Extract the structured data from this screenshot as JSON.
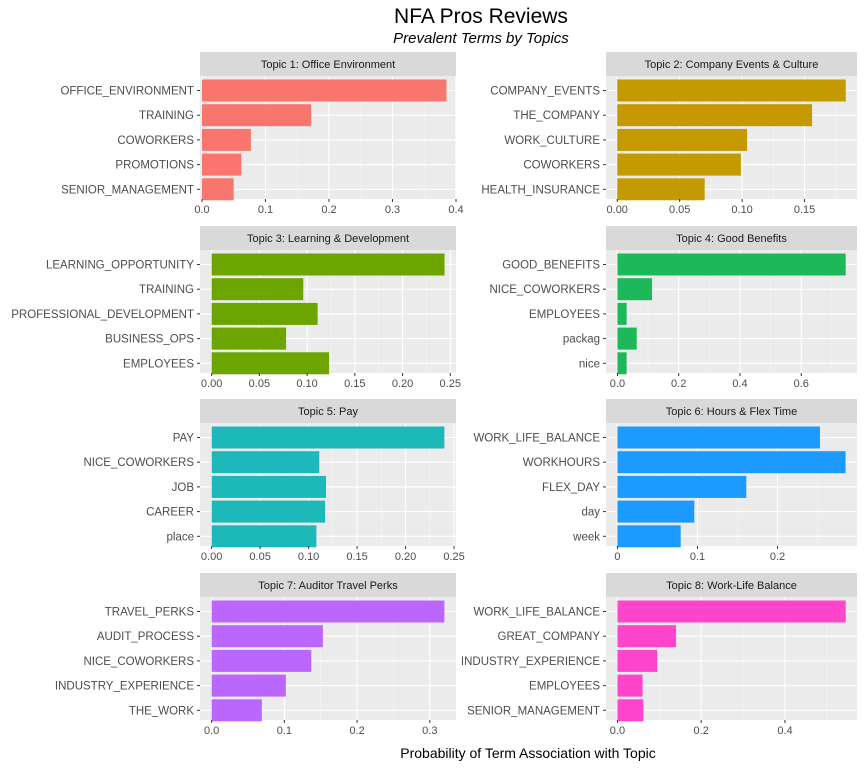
{
  "chart_data": {
    "type": "bar",
    "orientation": "horizontal",
    "title": "NFA Pros Reviews",
    "subtitle": "Prevalent Terms by Topics",
    "xlabel": "Probability of Term Association with Topic",
    "ylabel": "",
    "grid": true,
    "legend": "none",
    "panels": [
      {
        "title": "Topic 1: Office Environment",
        "color": "#F8766D",
        "categories": [
          "OFFICE_ENVIRONMENT",
          "TRAINING",
          "COWORKERS",
          "PROMOTIONS",
          "SENIOR_MANAGEMENT"
        ],
        "values": [
          0.385,
          0.172,
          0.077,
          0.062,
          0.05
        ],
        "xlim": [
          -0.0031,
          0.4
        ],
        "ticks": [
          0,
          0.1,
          0.2,
          0.3,
          0.4
        ],
        "tick_labels": [
          "0.0",
          "0.1",
          "0.2",
          "0.3",
          "0.4"
        ]
      },
      {
        "title": "Topic 2: Company Events & Culture",
        "color": "#C49A00",
        "categories": [
          "COMPANY_EVENTS",
          "THE_COMPANY",
          "WORK_CULTURE",
          "COWORKERS",
          "HEALTH_INSURANCE"
        ],
        "values": [
          0.183,
          0.156,
          0.104,
          0.099,
          0.07
        ],
        "xlim": [
          -0.009,
          0.192
        ],
        "ticks": [
          0,
          0.05,
          0.1,
          0.15
        ],
        "tick_labels": [
          "0.00",
          "0.05",
          "0.10",
          "0.15"
        ]
      },
      {
        "title": "Topic 3: Learning & Development",
        "color": "#6CA400",
        "categories": [
          "LEARNING_OPPORTUNITY",
          "TRAINING",
          "PROFESSIONAL_DEVELOPMENT",
          "BUSINESS_OPS",
          "EMPLOYEES"
        ],
        "values": [
          0.244,
          0.096,
          0.111,
          0.078,
          0.123
        ],
        "xlim": [
          -0.0122,
          0.256
        ],
        "ticks": [
          0,
          0.05,
          0.1,
          0.15,
          0.2,
          0.25
        ],
        "tick_labels": [
          "0.00",
          "0.05",
          "0.10",
          "0.15",
          "0.20",
          "0.25"
        ]
      },
      {
        "title": "Topic 4: Good Benefits",
        "color": "#1DB85A",
        "categories": [
          "GOOD_BENEFITS",
          "NICE_COWORKERS",
          "EMPLOYEES",
          "packag",
          "nice"
        ],
        "values": [
          0.745,
          0.113,
          0.03,
          0.063,
          0.03
        ],
        "xlim": [
          -0.0373,
          0.782
        ],
        "ticks": [
          0,
          0.2,
          0.4,
          0.6
        ],
        "tick_labels": [
          "0.0",
          "0.2",
          "0.4",
          "0.6"
        ]
      },
      {
        "title": "Topic 5: Pay",
        "color": "#1DB8BA",
        "categories": [
          "PAY",
          "NICE_COWORKERS",
          "JOB",
          "CAREER",
          "place"
        ],
        "values": [
          0.24,
          0.111,
          0.118,
          0.117,
          0.108
        ],
        "xlim": [
          -0.012,
          0.252
        ],
        "ticks": [
          0,
          0.05,
          0.1,
          0.15,
          0.2,
          0.25
        ],
        "tick_labels": [
          "0.00",
          "0.05",
          "0.10",
          "0.15",
          "0.20",
          "0.25"
        ]
      },
      {
        "title": "Topic 6: Hours & Flex Time",
        "color": "#1C9AFF",
        "categories": [
          "WORK_LIFE_BALANCE",
          "WORKHOURS",
          "FLEX_DAY",
          "day",
          "week"
        ],
        "values": [
          0.253,
          0.285,
          0.161,
          0.096,
          0.079
        ],
        "xlim": [
          -0.0143,
          0.2993
        ],
        "ticks": [
          0,
          0.1,
          0.2
        ],
        "tick_labels": [
          "0",
          "0.1",
          "0.2"
        ]
      },
      {
        "title": "Topic 7: Auditor Travel Perks",
        "color": "#BB66FF",
        "categories": [
          "TRAVEL_PERKS",
          "AUDIT_PROCESS",
          "NICE_COWORKERS",
          "INDUSTRY_EXPERIENCE",
          "THE_WORK"
        ],
        "values": [
          0.32,
          0.153,
          0.137,
          0.102,
          0.069
        ],
        "xlim": [
          -0.016,
          0.336
        ],
        "ticks": [
          0,
          0.1,
          0.2,
          0.3
        ],
        "tick_labels": [
          "0.0",
          "0.1",
          "0.2",
          "0.3"
        ]
      },
      {
        "title": "Topic 8: Work-Life Balance",
        "color": "#FF45CC",
        "categories": [
          "WORK_LIFE_BALANCE",
          "GREAT_COMPANY",
          "INDUSTRY_EXPERIENCE",
          "EMPLOYEES",
          "SENIOR_MANAGEMENT"
        ],
        "values": [
          0.545,
          0.14,
          0.095,
          0.06,
          0.062
        ],
        "xlim": [
          -0.0273,
          0.572
        ],
        "ticks": [
          0,
          0.2,
          0.4
        ],
        "tick_labels": [
          "0.0",
          "0.2",
          "0.4"
        ]
      }
    ]
  }
}
